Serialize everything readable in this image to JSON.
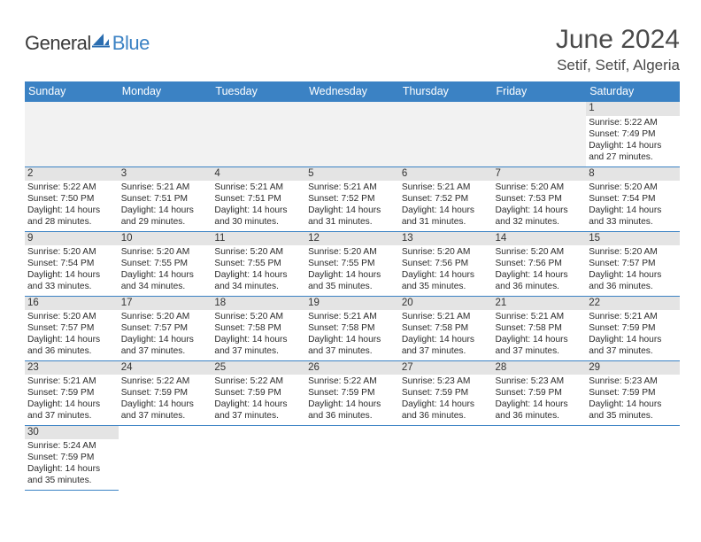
{
  "logo": {
    "main": "General",
    "accent": "Blue"
  },
  "title": "June 2024",
  "location": "Setif, Setif, Algeria",
  "colors": {
    "header_bg": "#3b82c4",
    "header_text": "#ffffff",
    "daynum_bg": "#e4e4e4",
    "row_border": "#3b82c4",
    "body_text": "#2b2b2b",
    "title_text": "#4a4a4a"
  },
  "fonts": {
    "title_size_pt": 30,
    "location_size_pt": 17,
    "weekday_size_pt": 12.5,
    "daynum_size_pt": 11.5,
    "cell_text_size_pt": 10.2
  },
  "layout": {
    "columns": 7,
    "rows": 6,
    "leading_blanks": 6
  },
  "weekdays": [
    "Sunday",
    "Monday",
    "Tuesday",
    "Wednesday",
    "Thursday",
    "Friday",
    "Saturday"
  ],
  "days": [
    {
      "n": 1,
      "sunrise": "5:22 AM",
      "sunset": "7:49 PM",
      "daylight": "14 hours and 27 minutes."
    },
    {
      "n": 2,
      "sunrise": "5:22 AM",
      "sunset": "7:50 PM",
      "daylight": "14 hours and 28 minutes."
    },
    {
      "n": 3,
      "sunrise": "5:21 AM",
      "sunset": "7:51 PM",
      "daylight": "14 hours and 29 minutes."
    },
    {
      "n": 4,
      "sunrise": "5:21 AM",
      "sunset": "7:51 PM",
      "daylight": "14 hours and 30 minutes."
    },
    {
      "n": 5,
      "sunrise": "5:21 AM",
      "sunset": "7:52 PM",
      "daylight": "14 hours and 31 minutes."
    },
    {
      "n": 6,
      "sunrise": "5:21 AM",
      "sunset": "7:52 PM",
      "daylight": "14 hours and 31 minutes."
    },
    {
      "n": 7,
      "sunrise": "5:20 AM",
      "sunset": "7:53 PM",
      "daylight": "14 hours and 32 minutes."
    },
    {
      "n": 8,
      "sunrise": "5:20 AM",
      "sunset": "7:54 PM",
      "daylight": "14 hours and 33 minutes."
    },
    {
      "n": 9,
      "sunrise": "5:20 AM",
      "sunset": "7:54 PM",
      "daylight": "14 hours and 33 minutes."
    },
    {
      "n": 10,
      "sunrise": "5:20 AM",
      "sunset": "7:55 PM",
      "daylight": "14 hours and 34 minutes."
    },
    {
      "n": 11,
      "sunrise": "5:20 AM",
      "sunset": "7:55 PM",
      "daylight": "14 hours and 34 minutes."
    },
    {
      "n": 12,
      "sunrise": "5:20 AM",
      "sunset": "7:55 PM",
      "daylight": "14 hours and 35 minutes."
    },
    {
      "n": 13,
      "sunrise": "5:20 AM",
      "sunset": "7:56 PM",
      "daylight": "14 hours and 35 minutes."
    },
    {
      "n": 14,
      "sunrise": "5:20 AM",
      "sunset": "7:56 PM",
      "daylight": "14 hours and 36 minutes."
    },
    {
      "n": 15,
      "sunrise": "5:20 AM",
      "sunset": "7:57 PM",
      "daylight": "14 hours and 36 minutes."
    },
    {
      "n": 16,
      "sunrise": "5:20 AM",
      "sunset": "7:57 PM",
      "daylight": "14 hours and 36 minutes."
    },
    {
      "n": 17,
      "sunrise": "5:20 AM",
      "sunset": "7:57 PM",
      "daylight": "14 hours and 37 minutes."
    },
    {
      "n": 18,
      "sunrise": "5:20 AM",
      "sunset": "7:58 PM",
      "daylight": "14 hours and 37 minutes."
    },
    {
      "n": 19,
      "sunrise": "5:21 AM",
      "sunset": "7:58 PM",
      "daylight": "14 hours and 37 minutes."
    },
    {
      "n": 20,
      "sunrise": "5:21 AM",
      "sunset": "7:58 PM",
      "daylight": "14 hours and 37 minutes."
    },
    {
      "n": 21,
      "sunrise": "5:21 AM",
      "sunset": "7:58 PM",
      "daylight": "14 hours and 37 minutes."
    },
    {
      "n": 22,
      "sunrise": "5:21 AM",
      "sunset": "7:59 PM",
      "daylight": "14 hours and 37 minutes."
    },
    {
      "n": 23,
      "sunrise": "5:21 AM",
      "sunset": "7:59 PM",
      "daylight": "14 hours and 37 minutes."
    },
    {
      "n": 24,
      "sunrise": "5:22 AM",
      "sunset": "7:59 PM",
      "daylight": "14 hours and 37 minutes."
    },
    {
      "n": 25,
      "sunrise": "5:22 AM",
      "sunset": "7:59 PM",
      "daylight": "14 hours and 37 minutes."
    },
    {
      "n": 26,
      "sunrise": "5:22 AM",
      "sunset": "7:59 PM",
      "daylight": "14 hours and 36 minutes."
    },
    {
      "n": 27,
      "sunrise": "5:23 AM",
      "sunset": "7:59 PM",
      "daylight": "14 hours and 36 minutes."
    },
    {
      "n": 28,
      "sunrise": "5:23 AM",
      "sunset": "7:59 PM",
      "daylight": "14 hours and 36 minutes."
    },
    {
      "n": 29,
      "sunrise": "5:23 AM",
      "sunset": "7:59 PM",
      "daylight": "14 hours and 35 minutes."
    },
    {
      "n": 30,
      "sunrise": "5:24 AM",
      "sunset": "7:59 PM",
      "daylight": "14 hours and 35 minutes."
    }
  ],
  "labels": {
    "sunrise": "Sunrise:",
    "sunset": "Sunset:",
    "daylight": "Daylight:"
  }
}
